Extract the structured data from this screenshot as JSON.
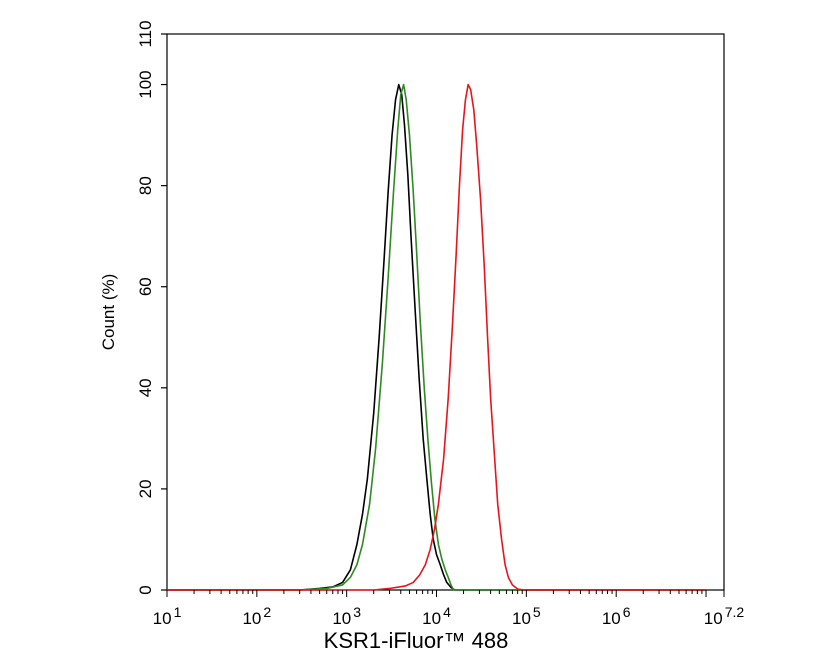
{
  "chart_data": {
    "type": "line",
    "title": "",
    "xlabel": "KSR1-iFluor™ 488",
    "ylabel": "Count (%)",
    "x_scale": "log",
    "xlim": [
      10,
      15848932
    ],
    "ylim": [
      0,
      110
    ],
    "grid": false,
    "legend": "none",
    "x_ticks": [
      {
        "value": 10,
        "base": "10",
        "exp": "1"
      },
      {
        "value": 100,
        "base": "10",
        "exp": "2"
      },
      {
        "value": 1000,
        "base": "10",
        "exp": "3"
      },
      {
        "value": 10000,
        "base": "10",
        "exp": "4"
      },
      {
        "value": 100000,
        "base": "10",
        "exp": "5"
      },
      {
        "value": 1000000,
        "base": "10",
        "exp": "6"
      },
      {
        "value": 15848932,
        "base": "10",
        "exp": "7.2"
      }
    ],
    "y_ticks": [
      "0",
      "20",
      "40",
      "60",
      "80",
      "100",
      "110"
    ],
    "series": [
      {
        "color": "#000000",
        "points": [
          [
            10,
            0
          ],
          [
            300,
            0
          ],
          [
            500,
            0.3
          ],
          [
            700,
            0.6
          ],
          [
            900,
            1.5
          ],
          [
            1100,
            4
          ],
          [
            1300,
            9
          ],
          [
            1500,
            15
          ],
          [
            1700,
            22
          ],
          [
            2000,
            35
          ],
          [
            2300,
            50
          ],
          [
            2600,
            65
          ],
          [
            2900,
            79
          ],
          [
            3200,
            90
          ],
          [
            3500,
            97
          ],
          [
            3800,
            100
          ],
          [
            4100,
            98
          ],
          [
            4400,
            92
          ],
          [
            4800,
            82
          ],
          [
            5200,
            70
          ],
          [
            5800,
            55
          ],
          [
            6400,
            42
          ],
          [
            7100,
            30
          ],
          [
            7800,
            22
          ],
          [
            8500,
            15
          ],
          [
            9200,
            10
          ],
          [
            10000,
            7
          ],
          [
            11000,
            5
          ],
          [
            12000,
            3
          ],
          [
            13000,
            1.5
          ],
          [
            14500,
            0.5
          ],
          [
            16000,
            0
          ],
          [
            10000000,
            0
          ]
        ]
      },
      {
        "color": "#2e8b22",
        "points": [
          [
            10,
            0
          ],
          [
            300,
            0
          ],
          [
            600,
            0.3
          ],
          [
            900,
            1
          ],
          [
            1100,
            2.5
          ],
          [
            1300,
            5
          ],
          [
            1500,
            9
          ],
          [
            1800,
            17
          ],
          [
            2100,
            28
          ],
          [
            2500,
            45
          ],
          [
            2900,
            62
          ],
          [
            3300,
            78
          ],
          [
            3700,
            91
          ],
          [
            4000,
            98
          ],
          [
            4300,
            100
          ],
          [
            4600,
            97
          ],
          [
            5000,
            90
          ],
          [
            5500,
            79
          ],
          [
            6000,
            67
          ],
          [
            6600,
            53
          ],
          [
            7300,
            40
          ],
          [
            8000,
            30
          ],
          [
            8800,
            21
          ],
          [
            9600,
            14
          ],
          [
            10500,
            9
          ],
          [
            11500,
            6
          ],
          [
            12500,
            4
          ],
          [
            13500,
            2.5
          ],
          [
            14500,
            1
          ],
          [
            15500,
            0
          ],
          [
            10000000,
            0
          ]
        ]
      },
      {
        "color": "#e8141c",
        "points": [
          [
            10,
            0
          ],
          [
            2000,
            0
          ],
          [
            3000,
            0.3
          ],
          [
            4500,
            0.8
          ],
          [
            5500,
            1.5
          ],
          [
            6500,
            3
          ],
          [
            7500,
            5
          ],
          [
            8500,
            8
          ],
          [
            9500,
            12
          ],
          [
            10500,
            17
          ],
          [
            12000,
            26
          ],
          [
            13500,
            38
          ],
          [
            15000,
            52
          ],
          [
            16500,
            66
          ],
          [
            18000,
            80
          ],
          [
            19500,
            91
          ],
          [
            21000,
            97
          ],
          [
            22500,
            100
          ],
          [
            24000,
            99
          ],
          [
            26000,
            95
          ],
          [
            28000,
            88
          ],
          [
            31000,
            77
          ],
          [
            34000,
            64
          ],
          [
            37000,
            50
          ],
          [
            40000,
            38
          ],
          [
            44000,
            27
          ],
          [
            48000,
            17
          ],
          [
            53000,
            10
          ],
          [
            58000,
            5
          ],
          [
            63000,
            2.5
          ],
          [
            70000,
            1
          ],
          [
            80000,
            0.2
          ],
          [
            95000,
            0
          ],
          [
            10000000,
            0
          ]
        ]
      }
    ]
  }
}
